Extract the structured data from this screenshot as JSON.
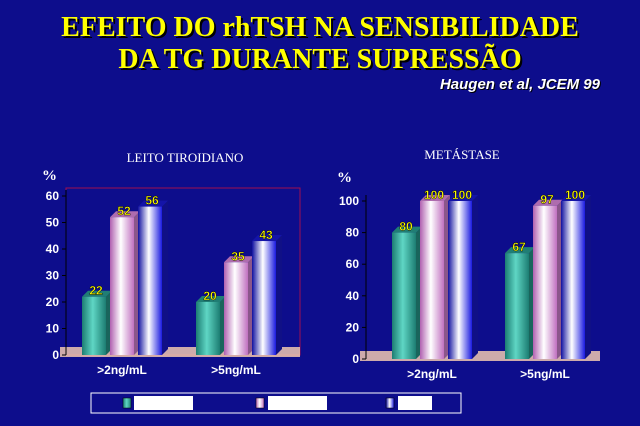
{
  "slide": {
    "title_line1": "EFEITO DO rhTSH  NA  SENSIBILIDADE",
    "title_line2": "DA TG DURANTE SUPRESSÃO",
    "citation": "Haugen et al, JCEM 99"
  },
  "colors": {
    "series": [
      "#2aa89a",
      "#e890e8",
      "#1a1ae0"
    ],
    "background": "#0d0d8c"
  },
  "chart_data": [
    {
      "type": "bar",
      "title": "LEITO TIROIDIANO",
      "ylabel": "%",
      "categories": [
        ">2ng/mL",
        ">5ng/mL"
      ],
      "ylim": [
        0,
        60
      ],
      "yticks": [
        0,
        10,
        20,
        30,
        40,
        50,
        60
      ],
      "series": [
        {
          "values": [
            22,
            20
          ]
        },
        {
          "values": [
            52,
            35
          ]
        },
        {
          "values": [
            56,
            43
          ]
        }
      ]
    },
    {
      "type": "bar",
      "title": "METÁSTASE",
      "ylabel": "%",
      "categories": [
        ">2ng/mL",
        ">5ng/mL"
      ],
      "ylim": [
        0,
        100
      ],
      "yticks": [
        0,
        20,
        40,
        60,
        80,
        100
      ],
      "series": [
        {
          "values": [
            80,
            67
          ]
        },
        {
          "values": [
            100,
            97
          ]
        },
        {
          "values": [
            100,
            100
          ]
        }
      ]
    }
  ],
  "legend": {
    "position": "bottom",
    "entries": 3
  }
}
